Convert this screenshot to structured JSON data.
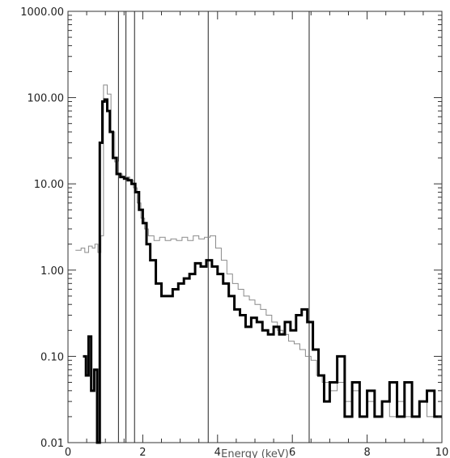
{
  "chart_data": {
    "type": "line",
    "title": "",
    "xlabel": "Energy (keV)",
    "ylabel": "",
    "xlim": [
      0,
      10
    ],
    "ylim": [
      0.01,
      1000
    ],
    "yscale": "log",
    "grid": false,
    "legend": "none",
    "x_ticks": [
      "0",
      "2",
      "4",
      "6",
      "8",
      "10"
    ],
    "y_ticks": [
      "0.01",
      "0.10",
      "1.00",
      "10.00",
      "100.00",
      "1000.00"
    ],
    "vertical_lines": [
      1.35,
      1.55,
      1.78,
      3.75,
      6.45
    ],
    "series": [
      {
        "name": "",
        "style": "thin-gray",
        "color": "#8a8a8a",
        "x": [
          0.2,
          0.35,
          0.45,
          0.55,
          0.65,
          0.72,
          0.8,
          0.88,
          0.95,
          1.05,
          1.15,
          1.25,
          1.35,
          1.45,
          1.55,
          1.65,
          1.75,
          1.85,
          1.95,
          2.05,
          2.15,
          2.3,
          2.45,
          2.6,
          2.75,
          2.9,
          3.05,
          3.2,
          3.35,
          3.5,
          3.65,
          3.8,
          3.95,
          4.1,
          4.25,
          4.4,
          4.55,
          4.7,
          4.85,
          5.0,
          5.15,
          5.3,
          5.45,
          5.6,
          5.75,
          5.9,
          6.05,
          6.2,
          6.35,
          6.5,
          6.65,
          6.8,
          7.0,
          7.2,
          7.4,
          7.6,
          7.8,
          8.0,
          8.2,
          8.4,
          8.6,
          8.8,
          9.0,
          9.2,
          9.4,
          9.6,
          9.8
        ],
        "y": [
          1.7,
          1.8,
          1.6,
          1.9,
          1.8,
          2.0,
          1.6,
          2.5,
          140,
          110,
          40,
          18,
          13,
          12,
          12,
          11,
          9,
          6,
          4,
          3,
          2.5,
          2.2,
          2.4,
          2.2,
          2.3,
          2.2,
          2.4,
          2.2,
          2.5,
          2.3,
          2.4,
          2.5,
          1.8,
          1.3,
          0.9,
          0.7,
          0.6,
          0.5,
          0.45,
          0.4,
          0.35,
          0.3,
          0.25,
          0.2,
          0.18,
          0.15,
          0.14,
          0.12,
          0.1,
          0.09,
          0.06,
          0.05,
          0.04,
          0.05,
          0.03,
          0.04,
          0.02,
          0.03,
          0.02,
          0.03,
          0.02,
          0.03,
          0.02,
          0.02,
          0.03,
          0.02,
          0.02
        ]
      },
      {
        "name": "",
        "style": "thick-black",
        "color": "#000000",
        "x": [
          0.4,
          0.48,
          0.55,
          0.62,
          0.7,
          0.78,
          0.85,
          0.92,
          0.98,
          1.05,
          1.12,
          1.2,
          1.3,
          1.4,
          1.5,
          1.6,
          1.7,
          1.8,
          1.9,
          2.0,
          2.1,
          2.2,
          2.35,
          2.5,
          2.65,
          2.8,
          2.95,
          3.1,
          3.25,
          3.4,
          3.55,
          3.7,
          3.85,
          4.0,
          4.15,
          4.3,
          4.45,
          4.6,
          4.75,
          4.9,
          5.05,
          5.2,
          5.35,
          5.5,
          5.65,
          5.8,
          5.95,
          6.1,
          6.25,
          6.4,
          6.55,
          6.7,
          6.85,
          7.0,
          7.2,
          7.4,
          7.6,
          7.8,
          8.0,
          8.2,
          8.4,
          8.6,
          8.8,
          9.0,
          9.2,
          9.4,
          9.6,
          9.8
        ],
        "y": [
          0.1,
          0.06,
          0.17,
          0.04,
          0.07,
          0.01,
          30,
          90,
          95,
          70,
          40,
          20,
          13,
          12,
          11.5,
          11,
          10,
          8,
          5,
          3.5,
          2,
          1.3,
          0.7,
          0.5,
          0.5,
          0.6,
          0.7,
          0.8,
          0.9,
          1.2,
          1.1,
          1.3,
          1.1,
          0.9,
          0.7,
          0.5,
          0.35,
          0.3,
          0.22,
          0.28,
          0.25,
          0.2,
          0.18,
          0.22,
          0.18,
          0.25,
          0.2,
          0.3,
          0.35,
          0.25,
          0.12,
          0.06,
          0.03,
          0.05,
          0.1,
          0.02,
          0.05,
          0.02,
          0.04,
          0.02,
          0.03,
          0.05,
          0.02,
          0.05,
          0.02,
          0.03,
          0.04,
          0.02
        ]
      }
    ]
  }
}
